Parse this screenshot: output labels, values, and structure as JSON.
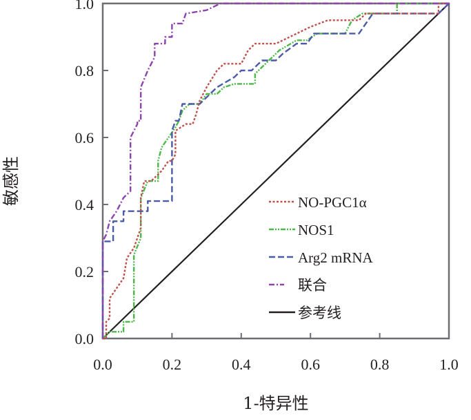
{
  "chart_data": {
    "type": "line",
    "title": "",
    "xlabel": "1-特异性",
    "ylabel": "敏感性",
    "xlim": [
      0.0,
      1.0
    ],
    "ylim": [
      0.0,
      1.0
    ],
    "x_ticks": [
      "0.0",
      "0.2",
      "0.4",
      "0.6",
      "0.8",
      "1.0"
    ],
    "y_ticks": [
      "0.0",
      "0.2",
      "0.4",
      "0.6",
      "0.8",
      "1.0"
    ],
    "grid": false,
    "legend_position": "bottom-right",
    "series": [
      {
        "name": "NO-PGC1α",
        "color": "#c0504d",
        "dash": "dotted",
        "points": [
          [
            0.0,
            0.0
          ],
          [
            0.01,
            0.0
          ],
          [
            0.01,
            0.05
          ],
          [
            0.02,
            0.06
          ],
          [
            0.02,
            0.12
          ],
          [
            0.04,
            0.15
          ],
          [
            0.06,
            0.18
          ],
          [
            0.07,
            0.24
          ],
          [
            0.09,
            0.27
          ],
          [
            0.1,
            0.3
          ],
          [
            0.11,
            0.33
          ],
          [
            0.11,
            0.42
          ],
          [
            0.12,
            0.47
          ],
          [
            0.14,
            0.47
          ],
          [
            0.17,
            0.5
          ],
          [
            0.19,
            0.53
          ],
          [
            0.2,
            0.53
          ],
          [
            0.21,
            0.55
          ],
          [
            0.21,
            0.62
          ],
          [
            0.24,
            0.64
          ],
          [
            0.26,
            0.64
          ],
          [
            0.27,
            0.67
          ],
          [
            0.28,
            0.71
          ],
          [
            0.3,
            0.75
          ],
          [
            0.33,
            0.8
          ],
          [
            0.35,
            0.82
          ],
          [
            0.4,
            0.82
          ],
          [
            0.42,
            0.86
          ],
          [
            0.44,
            0.88
          ],
          [
            0.5,
            0.88
          ],
          [
            0.54,
            0.9
          ],
          [
            0.6,
            0.93
          ],
          [
            0.65,
            0.95
          ],
          [
            0.74,
            0.95
          ],
          [
            0.76,
            0.97
          ],
          [
            0.97,
            0.97
          ],
          [
            0.97,
            1.0
          ],
          [
            1.0,
            1.0
          ]
        ]
      },
      {
        "name": "NOS1",
        "color": "#4cb848",
        "dash": "dash-dot-dot",
        "points": [
          [
            0.0,
            0.0
          ],
          [
            0.02,
            0.02
          ],
          [
            0.06,
            0.02
          ],
          [
            0.06,
            0.05
          ],
          [
            0.09,
            0.05
          ],
          [
            0.09,
            0.1
          ],
          [
            0.09,
            0.25
          ],
          [
            0.11,
            0.3
          ],
          [
            0.11,
            0.42
          ],
          [
            0.13,
            0.47
          ],
          [
            0.16,
            0.47
          ],
          [
            0.16,
            0.53
          ],
          [
            0.17,
            0.57
          ],
          [
            0.19,
            0.6
          ],
          [
            0.21,
            0.63
          ],
          [
            0.22,
            0.65
          ],
          [
            0.23,
            0.68
          ],
          [
            0.25,
            0.7
          ],
          [
            0.28,
            0.7
          ],
          [
            0.3,
            0.73
          ],
          [
            0.33,
            0.73
          ],
          [
            0.35,
            0.75
          ],
          [
            0.38,
            0.76
          ],
          [
            0.44,
            0.76
          ],
          [
            0.44,
            0.79
          ],
          [
            0.48,
            0.83
          ],
          [
            0.51,
            0.86
          ],
          [
            0.56,
            0.89
          ],
          [
            0.59,
            0.89
          ],
          [
            0.62,
            0.91
          ],
          [
            0.7,
            0.91
          ],
          [
            0.72,
            0.95
          ],
          [
            0.75,
            0.97
          ],
          [
            0.85,
            0.97
          ],
          [
            0.85,
            1.0
          ],
          [
            1.0,
            1.0
          ]
        ]
      },
      {
        "name": "Arg2 mRNA",
        "color": "#4a5aa8",
        "dash": "long-dash",
        "points": [
          [
            0.0,
            0.0
          ],
          [
            0.0,
            0.29
          ],
          [
            0.03,
            0.29
          ],
          [
            0.03,
            0.35
          ],
          [
            0.06,
            0.35
          ],
          [
            0.06,
            0.38
          ],
          [
            0.13,
            0.38
          ],
          [
            0.13,
            0.41
          ],
          [
            0.2,
            0.41
          ],
          [
            0.2,
            0.62
          ],
          [
            0.21,
            0.65
          ],
          [
            0.22,
            0.65
          ],
          [
            0.23,
            0.7
          ],
          [
            0.28,
            0.7
          ],
          [
            0.33,
            0.75
          ],
          [
            0.38,
            0.78
          ],
          [
            0.4,
            0.8
          ],
          [
            0.43,
            0.8
          ],
          [
            0.46,
            0.83
          ],
          [
            0.5,
            0.83
          ],
          [
            0.52,
            0.85
          ],
          [
            0.56,
            0.88
          ],
          [
            0.59,
            0.88
          ],
          [
            0.61,
            0.91
          ],
          [
            0.74,
            0.91
          ],
          [
            0.76,
            0.94
          ],
          [
            0.78,
            0.97
          ],
          [
            0.97,
            0.97
          ],
          [
            1.0,
            1.0
          ]
        ]
      },
      {
        "name": "联合",
        "color": "#8e44ad",
        "dash": "dash-dot",
        "points": [
          [
            0.0,
            0.0
          ],
          [
            0.0,
            0.12
          ],
          [
            0.0,
            0.29
          ],
          [
            0.01,
            0.31
          ],
          [
            0.02,
            0.35
          ],
          [
            0.04,
            0.38
          ],
          [
            0.06,
            0.42
          ],
          [
            0.08,
            0.44
          ],
          [
            0.08,
            0.5
          ],
          [
            0.08,
            0.6
          ],
          [
            0.09,
            0.62
          ],
          [
            0.1,
            0.64
          ],
          [
            0.1,
            0.65
          ],
          [
            0.11,
            0.65
          ],
          [
            0.11,
            0.75
          ],
          [
            0.13,
            0.8
          ],
          [
            0.15,
            0.84
          ],
          [
            0.15,
            0.88
          ],
          [
            0.18,
            0.88
          ],
          [
            0.18,
            0.9
          ],
          [
            0.2,
            0.9
          ],
          [
            0.2,
            0.94
          ],
          [
            0.23,
            0.94
          ],
          [
            0.24,
            0.97
          ],
          [
            0.3,
            0.98
          ],
          [
            0.34,
            1.0
          ],
          [
            1.0,
            1.0
          ]
        ]
      },
      {
        "name": "参考线",
        "color": "#231f20",
        "dash": "solid",
        "points": [
          [
            0.0,
            0.0
          ],
          [
            1.0,
            1.0
          ]
        ]
      }
    ]
  }
}
